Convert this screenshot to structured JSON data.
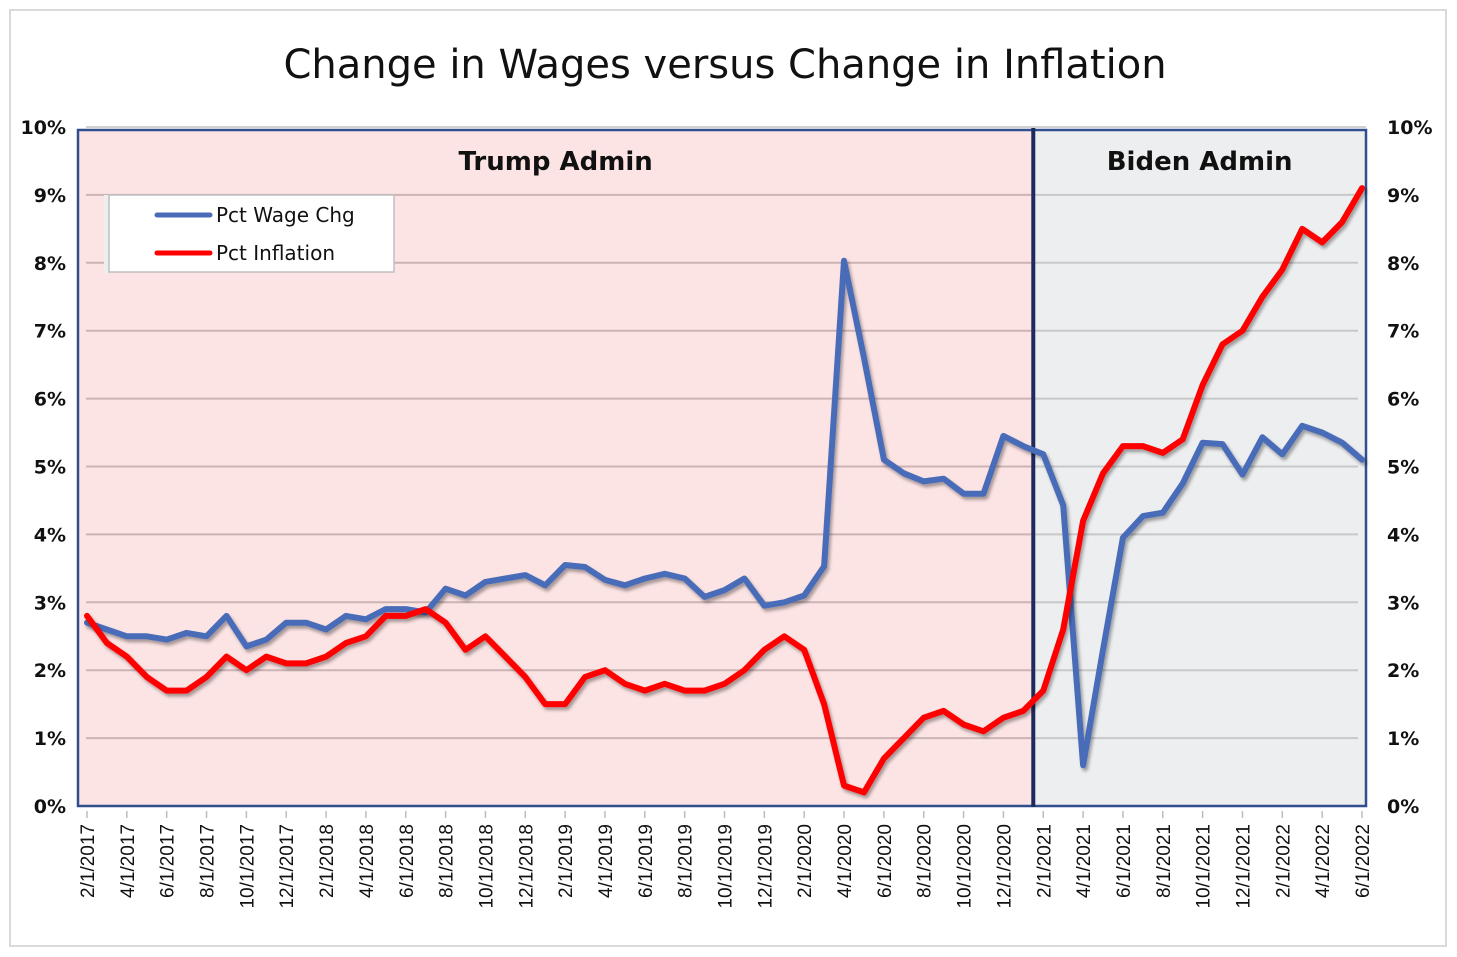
{
  "chart_data": {
    "type": "line",
    "title": "Change in Wages versus Change in Inflation",
    "xlabel": "",
    "ylabel": "",
    "ylim": [
      0,
      10
    ],
    "y_ticks": [
      "0%",
      "1%",
      "2%",
      "3%",
      "4%",
      "5%",
      "6%",
      "7%",
      "8%",
      "9%",
      "10%"
    ],
    "y_tick_values": [
      0,
      1,
      2,
      3,
      4,
      5,
      6,
      7,
      8,
      9,
      10
    ],
    "y_axis_right": true,
    "grid": true,
    "legend_position": "top-left",
    "x_start": "2/1/2017",
    "x_end": "6/1/2022",
    "x_tick_labels": [
      "2/1/2017",
      "4/1/2017",
      "6/1/2017",
      "8/1/2017",
      "10/1/2017",
      "12/1/2017",
      "2/1/2018",
      "4/1/2018",
      "6/1/2018",
      "8/1/2018",
      "10/1/2018",
      "12/1/2018",
      "2/1/2019",
      "4/1/2019",
      "6/1/2019",
      "8/1/2019",
      "10/1/2019",
      "12/1/2019",
      "2/1/2020",
      "4/1/2020",
      "6/1/2020",
      "8/1/2020",
      "10/1/2020",
      "12/1/2020",
      "2/1/2021",
      "4/1/2021",
      "6/1/2021",
      "8/1/2021",
      "10/1/2021",
      "12/1/2021",
      "2/1/2022",
      "4/1/2022",
      "6/1/2022"
    ],
    "regions": [
      {
        "label": "Trump Admin",
        "from_index": 0,
        "to_index": 47.5,
        "color": "#fde4e4"
      },
      {
        "label": "Biden Admin",
        "from_index": 47.5,
        "to_index": 64,
        "color": "#edeef0"
      }
    ],
    "divider_color": "#1f2a5c",
    "series": [
      {
        "name": "Pct Wage Chg",
        "color": "#4a6cb8",
        "values": [
          2.7,
          2.6,
          2.5,
          2.5,
          2.45,
          2.55,
          2.5,
          2.8,
          2.35,
          2.45,
          2.7,
          2.7,
          2.6,
          2.8,
          2.75,
          2.9,
          2.9,
          2.85,
          3.2,
          3.1,
          3.3,
          3.35,
          3.4,
          3.25,
          3.55,
          3.52,
          3.33,
          3.25,
          3.35,
          3.42,
          3.35,
          3.08,
          3.18,
          3.35,
          2.95,
          3.0,
          3.1,
          3.53,
          8.03,
          6.6,
          5.1,
          4.9,
          4.78,
          4.82,
          4.6,
          4.6,
          5.45,
          5.3,
          5.18,
          4.43,
          0.6,
          2.3,
          3.95,
          4.27,
          4.32,
          4.75,
          5.35,
          5.33,
          4.88,
          5.43,
          5.18,
          5.6,
          5.5,
          5.35,
          5.1
        ]
      },
      {
        "name": "Pct Inflation",
        "color": "#ff0000",
        "values": [
          2.8,
          2.4,
          2.2,
          1.9,
          1.7,
          1.7,
          1.9,
          2.2,
          2.0,
          2.2,
          2.1,
          2.1,
          2.2,
          2.4,
          2.5,
          2.8,
          2.8,
          2.9,
          2.7,
          2.3,
          2.5,
          2.2,
          1.9,
          1.5,
          1.5,
          1.9,
          2.0,
          1.8,
          1.7,
          1.8,
          1.7,
          1.7,
          1.8,
          2.0,
          2.3,
          2.5,
          2.3,
          1.5,
          0.3,
          0.2,
          0.7,
          1.0,
          1.3,
          1.4,
          1.2,
          1.1,
          1.3,
          1.4,
          1.7,
          2.6,
          4.2,
          4.9,
          5.3,
          5.3,
          5.2,
          5.4,
          6.2,
          6.8,
          7.0,
          7.5,
          7.9,
          8.5,
          8.3,
          8.6,
          9.1
        ]
      }
    ]
  }
}
